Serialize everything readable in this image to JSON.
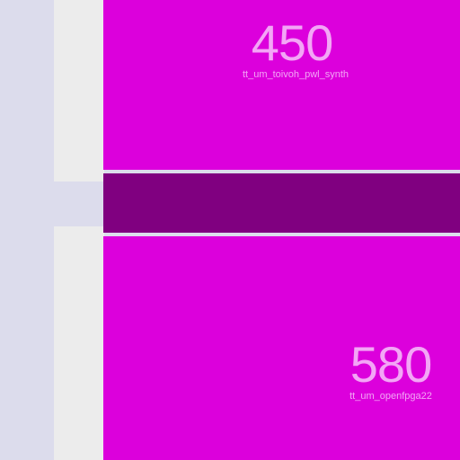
{
  "map": {
    "colors": {
      "background": "#dcdcec",
      "strip": "#ececec",
      "tile_active": "#dc00dc",
      "tile_selected": "#800080",
      "label_text": "#f3a6f6",
      "divider": "#ffffff"
    },
    "tiles": [
      {
        "number": "450",
        "name": "tt_um_toivoh_pwl_synth"
      },
      {
        "number": "",
        "name": ""
      },
      {
        "number": "580",
        "name": "tt_um_openfpga22"
      }
    ]
  }
}
